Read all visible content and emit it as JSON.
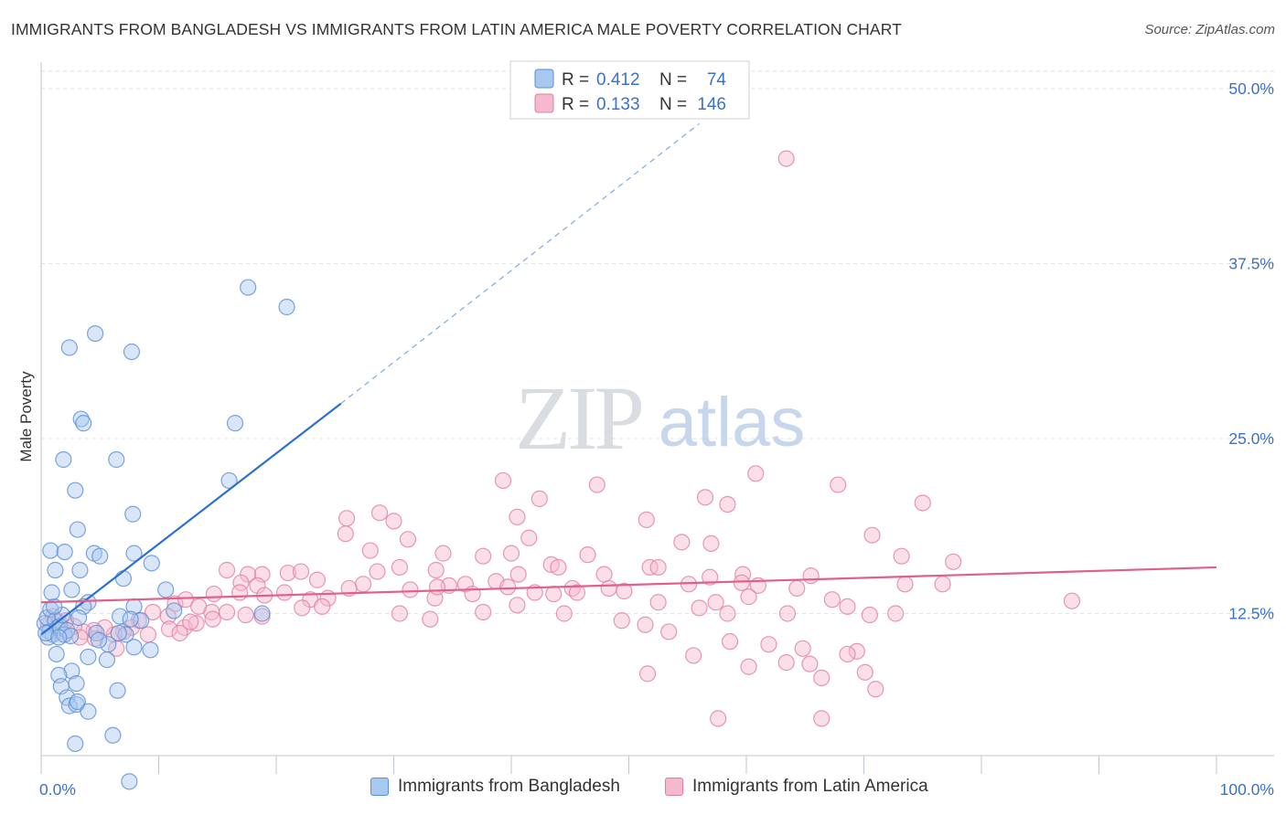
{
  "title": "IMMIGRANTS FROM BANGLADESH VS IMMIGRANTS FROM LATIN AMERICA MALE POVERTY CORRELATION CHART",
  "source": "Source: ZipAtlas.com",
  "watermark": {
    "zip": "ZIP",
    "atlas": "atlas"
  },
  "colors": {
    "blue_fill": "#a9c8f0",
    "blue_stroke": "#5b8fd6",
    "blue_line": "#2b6fd1",
    "pink_fill": "#f6b8cc",
    "pink_stroke": "#e07fa0",
    "pink_line": "#e0608a",
    "axis_text": "#3b72c9",
    "grid": "#dde3ea"
  },
  "legend": {
    "rows": [
      {
        "r_label": "R =",
        "r_value": "0.412",
        "n_label": "N =",
        "n_value": "74"
      },
      {
        "r_label": "R =",
        "r_value": "0.133",
        "n_label": "N =",
        "n_value": "146"
      }
    ]
  },
  "chart_data": {
    "type": "scatter",
    "title": "IMMIGRANTS FROM BANGLADESH VS IMMIGRANTS FROM LATIN AMERICA MALE POVERTY CORRELATION CHART",
    "xlabel": "",
    "ylabel": "Male Poverty",
    "xlim": [
      0,
      100
    ],
    "ylim": [
      0,
      50
    ],
    "x_tick_labels": [
      "0.0%",
      "100.0%"
    ],
    "y_ticks": [
      12.5,
      25.0,
      37.5,
      50.0
    ],
    "y_tick_labels": [
      "12.5%",
      "25.0%",
      "37.5%",
      "50.0%"
    ],
    "grid": true,
    "legend_position": "top-center",
    "series": [
      {
        "name": "Immigrants from Bangladesh",
        "r": 0.412,
        "n": 74,
        "trend": {
          "x0": 0,
          "y0": 11.0,
          "x1": 25.5,
          "y1": 27.5,
          "dash_to_x": 56,
          "dash_to_y": 47.5
        },
        "points": [
          [
            0.3,
            11.8
          ],
          [
            0.5,
            12.2
          ],
          [
            0.7,
            11.2
          ],
          [
            0.8,
            12.8
          ],
          [
            1.0,
            11.0
          ],
          [
            1.2,
            12.0
          ],
          [
            1.4,
            11.5
          ],
          [
            0.6,
            10.8
          ],
          [
            1.6,
            11.6
          ],
          [
            1.8,
            12.4
          ],
          [
            2.0,
            11.0
          ],
          [
            2.2,
            11.3
          ],
          [
            2.5,
            10.9
          ],
          [
            1.1,
            13.0
          ],
          [
            1.3,
            9.6
          ],
          [
            0.9,
            14.0
          ],
          [
            2.4,
            31.5
          ],
          [
            4.6,
            32.5
          ],
          [
            7.7,
            31.2
          ],
          [
            17.6,
            35.8
          ],
          [
            20.9,
            34.4
          ],
          [
            3.4,
            26.4
          ],
          [
            3.6,
            26.1
          ],
          [
            16.5,
            26.1
          ],
          [
            1.9,
            23.5
          ],
          [
            6.4,
            23.5
          ],
          [
            2.9,
            21.3
          ],
          [
            16.0,
            22.0
          ],
          [
            3.1,
            18.5
          ],
          [
            7.8,
            19.6
          ],
          [
            0.8,
            17.0
          ],
          [
            2.0,
            16.9
          ],
          [
            4.5,
            16.8
          ],
          [
            5.0,
            16.6
          ],
          [
            7.9,
            16.8
          ],
          [
            9.4,
            16.1
          ],
          [
            1.2,
            15.6
          ],
          [
            3.3,
            15.6
          ],
          [
            7.0,
            15.0
          ],
          [
            2.6,
            14.2
          ],
          [
            4.0,
            13.3
          ],
          [
            3.6,
            13.0
          ],
          [
            7.9,
            13.0
          ],
          [
            10.6,
            14.2
          ],
          [
            6.7,
            12.3
          ],
          [
            8.5,
            12.0
          ],
          [
            11.3,
            12.7
          ],
          [
            18.8,
            12.5
          ],
          [
            3.2,
            12.2
          ],
          [
            4.7,
            11.1
          ],
          [
            5.7,
            10.3
          ],
          [
            7.2,
            11.0
          ],
          [
            7.6,
            12.1
          ],
          [
            6.6,
            11.1
          ],
          [
            4.9,
            10.6
          ],
          [
            9.3,
            9.9
          ],
          [
            7.9,
            10.1
          ],
          [
            5.6,
            9.2
          ],
          [
            4.0,
            9.4
          ],
          [
            2.6,
            8.4
          ],
          [
            1.5,
            8.1
          ],
          [
            1.7,
            7.3
          ],
          [
            3.0,
            7.5
          ],
          [
            6.5,
            7.0
          ],
          [
            2.2,
            6.5
          ],
          [
            2.4,
            5.9
          ],
          [
            3.0,
            6.0
          ],
          [
            3.1,
            6.2
          ],
          [
            4.0,
            5.5
          ],
          [
            6.1,
            3.8
          ],
          [
            2.9,
            3.2
          ],
          [
            7.5,
            0.5
          ],
          [
            0.4,
            11.1
          ],
          [
            1.5,
            10.8
          ]
        ]
      },
      {
        "name": "Immigrants from Latin America",
        "r": 0.133,
        "n": 146,
        "trend": {
          "x0": 0,
          "y0": 13.3,
          "x1": 100,
          "y1": 15.8
        },
        "points": [
          [
            63.4,
            45.0
          ],
          [
            39.3,
            22.0
          ],
          [
            42.4,
            20.7
          ],
          [
            47.3,
            21.7
          ],
          [
            56.5,
            20.8
          ],
          [
            58.4,
            20.3
          ],
          [
            60.8,
            22.5
          ],
          [
            67.8,
            21.7
          ],
          [
            75.0,
            20.4
          ],
          [
            26.0,
            19.3
          ],
          [
            28.8,
            19.7
          ],
          [
            30.0,
            19.1
          ],
          [
            41.5,
            17.9
          ],
          [
            31.2,
            17.8
          ],
          [
            40.5,
            19.4
          ],
          [
            51.5,
            19.2
          ],
          [
            54.5,
            17.6
          ],
          [
            57.0,
            17.5
          ],
          [
            70.7,
            18.1
          ],
          [
            73.2,
            16.6
          ],
          [
            25.9,
            18.2
          ],
          [
            28.0,
            17.0
          ],
          [
            34.2,
            16.8
          ],
          [
            40.0,
            16.8
          ],
          [
            37.6,
            16.6
          ],
          [
            43.4,
            16.0
          ],
          [
            46.5,
            16.7
          ],
          [
            77.6,
            16.2
          ],
          [
            28.6,
            15.5
          ],
          [
            33.6,
            15.6
          ],
          [
            40.6,
            15.3
          ],
          [
            44.0,
            15.8
          ],
          [
            47.9,
            15.3
          ],
          [
            51.8,
            15.8
          ],
          [
            52.5,
            15.8
          ],
          [
            56.9,
            15.1
          ],
          [
            59.7,
            15.3
          ],
          [
            65.5,
            15.2
          ],
          [
            21.0,
            15.4
          ],
          [
            22.1,
            15.5
          ],
          [
            18.8,
            15.3
          ],
          [
            17.6,
            15.3
          ],
          [
            17.0,
            14.7
          ],
          [
            18.4,
            14.5
          ],
          [
            23.5,
            14.9
          ],
          [
            26.2,
            14.3
          ],
          [
            27.4,
            14.6
          ],
          [
            31.4,
            14.2
          ],
          [
            34.7,
            14.5
          ],
          [
            36.1,
            14.6
          ],
          [
            38.7,
            14.8
          ],
          [
            39.7,
            14.4
          ],
          [
            42.0,
            14.0
          ],
          [
            45.2,
            14.3
          ],
          [
            48.3,
            14.3
          ],
          [
            49.6,
            14.1
          ],
          [
            55.1,
            14.6
          ],
          [
            59.6,
            14.7
          ],
          [
            61.0,
            14.5
          ],
          [
            64.3,
            14.3
          ],
          [
            73.5,
            14.6
          ],
          [
            14.7,
            13.9
          ],
          [
            16.9,
            14.0
          ],
          [
            19.0,
            13.8
          ],
          [
            20.7,
            14.0
          ],
          [
            22.9,
            13.5
          ],
          [
            24.4,
            13.6
          ],
          [
            33.5,
            13.6
          ],
          [
            36.7,
            13.9
          ],
          [
            40.5,
            13.1
          ],
          [
            43.6,
            13.9
          ],
          [
            45.6,
            14.0
          ],
          [
            52.5,
            13.3
          ],
          [
            57.4,
            13.3
          ],
          [
            60.2,
            13.7
          ],
          [
            67.3,
            13.5
          ],
          [
            68.6,
            13.0
          ],
          [
            76.7,
            14.6
          ],
          [
            87.7,
            13.4
          ],
          [
            14.5,
            12.6
          ],
          [
            15.8,
            12.6
          ],
          [
            17.4,
            12.4
          ],
          [
            18.8,
            12.3
          ],
          [
            22.2,
            12.9
          ],
          [
            23.9,
            13.0
          ],
          [
            30.5,
            12.5
          ],
          [
            33.1,
            12.1
          ],
          [
            37.6,
            12.6
          ],
          [
            49.4,
            12.0
          ],
          [
            56.0,
            12.9
          ],
          [
            58.4,
            12.5
          ],
          [
            63.5,
            12.5
          ],
          [
            70.5,
            12.4
          ],
          [
            72.7,
            12.5
          ],
          [
            11.4,
            13.2
          ],
          [
            12.3,
            13.5
          ],
          [
            13.4,
            13.0
          ],
          [
            10.8,
            12.3
          ],
          [
            9.5,
            12.6
          ],
          [
            8.3,
            12.0
          ],
          [
            7.7,
            11.5
          ],
          [
            7.0,
            11.2
          ],
          [
            6.2,
            11.0
          ],
          [
            5.4,
            11.5
          ],
          [
            4.5,
            11.3
          ],
          [
            3.6,
            11.2
          ],
          [
            2.8,
            11.6
          ],
          [
            2.1,
            12.0
          ],
          [
            1.5,
            11.9
          ],
          [
            1.0,
            12.3
          ],
          [
            0.6,
            11.7
          ],
          [
            1.9,
            11.0
          ],
          [
            3.3,
            10.8
          ],
          [
            4.6,
            10.7
          ],
          [
            12.2,
            11.5
          ],
          [
            13.2,
            11.8
          ],
          [
            14.6,
            12.1
          ],
          [
            9.1,
            11.0
          ],
          [
            10.9,
            11.4
          ],
          [
            11.8,
            11.1
          ],
          [
            12.7,
            11.9
          ],
          [
            51.4,
            11.7
          ],
          [
            53.4,
            11.2
          ],
          [
            58.6,
            10.5
          ],
          [
            61.9,
            10.3
          ],
          [
            64.8,
            10.0
          ],
          [
            69.4,
            9.8
          ],
          [
            55.5,
            9.5
          ],
          [
            60.2,
            8.7
          ],
          [
            63.4,
            9.0
          ],
          [
            65.4,
            8.9
          ],
          [
            66.4,
            7.9
          ],
          [
            68.6,
            9.6
          ],
          [
            70.1,
            8.3
          ],
          [
            71.0,
            7.1
          ],
          [
            51.6,
            8.2
          ],
          [
            33.7,
            14.4
          ],
          [
            57.6,
            5.0
          ],
          [
            66.4,
            5.0
          ],
          [
            30.5,
            15.8
          ],
          [
            15.8,
            15.6
          ],
          [
            44.5,
            12.5
          ],
          [
            6.4,
            10.0
          ]
        ]
      }
    ]
  },
  "bottom_legend": [
    {
      "label": "Immigrants from Bangladesh"
    },
    {
      "label": "Immigrants from Latin America"
    }
  ]
}
